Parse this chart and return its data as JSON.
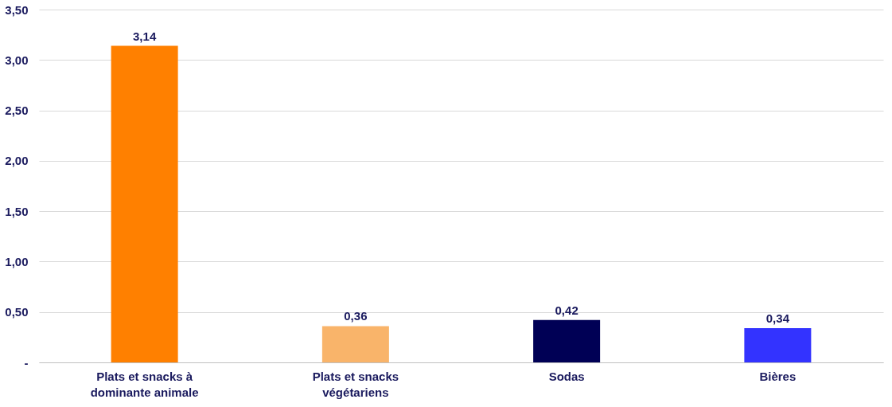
{
  "chart_data": {
    "type": "bar",
    "categories": [
      "Plats et snacks à dominante animale",
      "Plats et snacks végétariens",
      "Sodas",
      "Bières"
    ],
    "values": [
      3.14,
      0.36,
      0.42,
      0.34
    ],
    "colors": [
      "#ff8000",
      "#f9b46a",
      "#000055",
      "#3333ff"
    ],
    "value_labels": [
      "3,14",
      "0,36",
      "0,42",
      "0,34"
    ],
    "ylim": [
      0,
      3.5
    ],
    "yticks": [
      {
        "value": 0,
        "label": "-"
      },
      {
        "value": 0.5,
        "label": "0,50"
      },
      {
        "value": 1,
        "label": "1,00"
      },
      {
        "value": 1.5,
        "label": "1,50"
      },
      {
        "value": 2,
        "label": "2,00"
      },
      {
        "value": 2.5,
        "label": "2,50"
      },
      {
        "value": 3,
        "label": "3,00"
      },
      {
        "value": 3.5,
        "label": "3,50"
      }
    ],
    "grid": "y"
  }
}
